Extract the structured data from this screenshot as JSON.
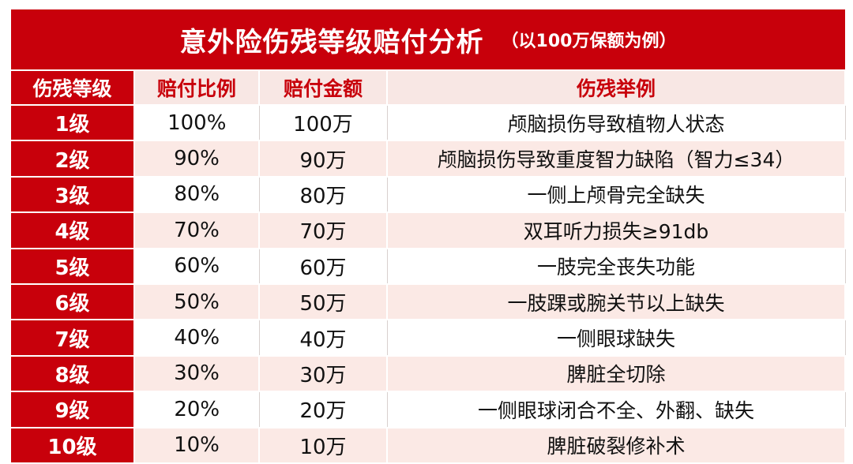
{
  "title": {
    "main": "意外险伤残等级赔付分析",
    "sub": "（以100万保额为例）"
  },
  "headers": [
    "伤残等级",
    "赔付比例",
    "赔付金额",
    "伤残举例"
  ],
  "rows": [
    {
      "grade": "1级",
      "ratio": "100%",
      "amount": "100万",
      "example": "颅脑损伤导致植物人状态"
    },
    {
      "grade": "2级",
      "ratio": "90%",
      "amount": "90万",
      "example": "颅脑损伤导致重度智力缺陷（智力≤34）"
    },
    {
      "grade": "3级",
      "ratio": "80%",
      "amount": "80万",
      "example": "一侧上颅骨完全缺失"
    },
    {
      "grade": "4级",
      "ratio": "70%",
      "amount": "70万",
      "example": "双耳听力损失≥91db"
    },
    {
      "grade": "5级",
      "ratio": "60%",
      "amount": "60万",
      "example": "一肢完全丧失功能"
    },
    {
      "grade": "6级",
      "ratio": "50%",
      "amount": "50万",
      "example": "一肢踝或腕关节以上缺失"
    },
    {
      "grade": "7级",
      "ratio": "40%",
      "amount": "40万",
      "example": "一侧眼球缺失"
    },
    {
      "grade": "8级",
      "ratio": "30%",
      "amount": "30万",
      "example": "脾脏全切除"
    },
    {
      "grade": "9级",
      "ratio": "20%",
      "amount": "20万",
      "example": "一侧眼球闭合不全、外翻、缺失"
    },
    {
      "grade": "10级",
      "ratio": "10%",
      "amount": "10万",
      "example": "脾脏破裂修补术"
    }
  ],
  "colors": {
    "brand_red": "#c8000b",
    "row_tint": "#fbe9e5",
    "header_tint": "#f8e7e4"
  }
}
